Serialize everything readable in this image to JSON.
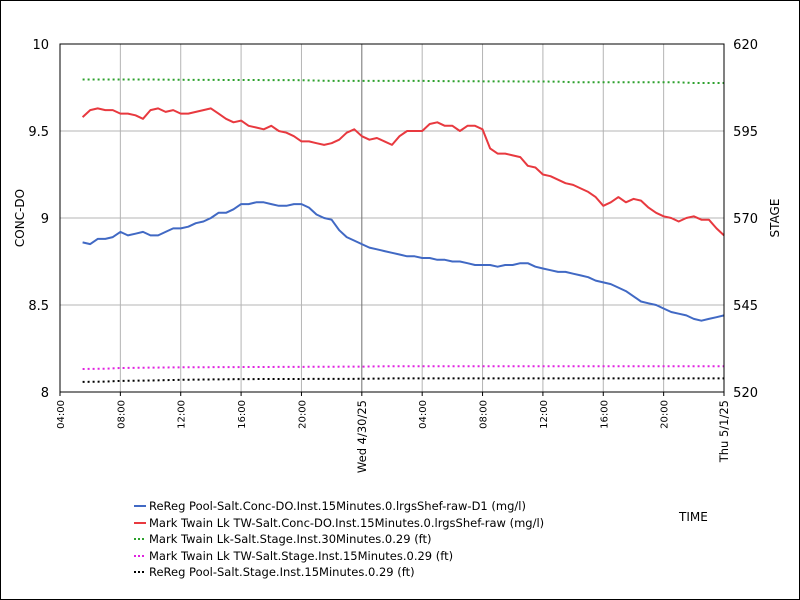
{
  "chart_data": {
    "type": "line",
    "xlabel": "TIME",
    "ylabel": "CONC-DO",
    "y2label": "STAGE",
    "x_range": [
      "2025-04-29 04:00",
      "2025-05-01 00:00"
    ],
    "ylim": [
      8,
      10
    ],
    "y2lim": [
      520,
      620
    ],
    "yticks": [
      "10",
      "9.5",
      "9",
      "8.5",
      "8"
    ],
    "y2ticks": [
      "620",
      "595",
      "570",
      "545",
      "520"
    ],
    "xticks": [
      {
        "time": "2025-04-29 04:00",
        "label": "04:00"
      },
      {
        "time": "2025-04-29 08:00",
        "label": "08:00"
      },
      {
        "time": "2025-04-29 12:00",
        "label": "12:00"
      },
      {
        "time": "2025-04-29 16:00",
        "label": "16:00"
      },
      {
        "time": "2025-04-29 20:00",
        "label": "20:00"
      },
      {
        "time": "2025-04-30 00:00",
        "label": "Wed 4/30/25"
      },
      {
        "time": "2025-04-30 04:00",
        "label": "04:00"
      },
      {
        "time": "2025-04-30 08:00",
        "label": "08:00"
      },
      {
        "time": "2025-04-30 12:00",
        "label": "12:00"
      },
      {
        "time": "2025-04-30 16:00",
        "label": "16:00"
      },
      {
        "time": "2025-04-30 20:00",
        "label": "20:00"
      },
      {
        "time": "2025-05-01 00:00",
        "label": "Thu 5/1/25"
      }
    ],
    "grid": true,
    "legend_position": "bottom",
    "series": [
      {
        "name": "ReReg Pool-Salt.Conc-DO.Inst.15Minutes.0.lrgsShef-raw-D1 (mg/l)",
        "axis": "left",
        "color": "#4169c4",
        "style": "solid",
        "points": [
          [
            "2025-04-29 05:30",
            8.86
          ],
          [
            "2025-04-29 06:00",
            8.85
          ],
          [
            "2025-04-29 06:30",
            8.88
          ],
          [
            "2025-04-29 07:00",
            8.88
          ],
          [
            "2025-04-29 07:30",
            8.89
          ],
          [
            "2025-04-29 08:00",
            8.92
          ],
          [
            "2025-04-29 08:30",
            8.9
          ],
          [
            "2025-04-29 09:00",
            8.91
          ],
          [
            "2025-04-29 09:30",
            8.92
          ],
          [
            "2025-04-29 10:00",
            8.9
          ],
          [
            "2025-04-29 10:30",
            8.9
          ],
          [
            "2025-04-29 11:00",
            8.92
          ],
          [
            "2025-04-29 11:30",
            8.94
          ],
          [
            "2025-04-29 12:00",
            8.94
          ],
          [
            "2025-04-29 12:30",
            8.95
          ],
          [
            "2025-04-29 13:00",
            8.97
          ],
          [
            "2025-04-29 13:30",
            8.98
          ],
          [
            "2025-04-29 14:00",
            9.0
          ],
          [
            "2025-04-29 14:30",
            9.03
          ],
          [
            "2025-04-29 15:00",
            9.03
          ],
          [
            "2025-04-29 15:30",
            9.05
          ],
          [
            "2025-04-29 16:00",
            9.08
          ],
          [
            "2025-04-29 16:30",
            9.08
          ],
          [
            "2025-04-29 17:00",
            9.09
          ],
          [
            "2025-04-29 17:30",
            9.09
          ],
          [
            "2025-04-29 18:00",
            9.08
          ],
          [
            "2025-04-29 18:30",
            9.07
          ],
          [
            "2025-04-29 19:00",
            9.07
          ],
          [
            "2025-04-29 19:30",
            9.08
          ],
          [
            "2025-04-29 20:00",
            9.08
          ],
          [
            "2025-04-29 20:30",
            9.06
          ],
          [
            "2025-04-29 21:00",
            9.02
          ],
          [
            "2025-04-29 21:30",
            9.0
          ],
          [
            "2025-04-29 22:00",
            8.99
          ],
          [
            "2025-04-29 22:30",
            8.93
          ],
          [
            "2025-04-29 23:00",
            8.89
          ],
          [
            "2025-04-29 23:30",
            8.87
          ],
          [
            "2025-04-30 00:00",
            8.85
          ],
          [
            "2025-04-30 00:30",
            8.83
          ],
          [
            "2025-04-30 01:00",
            8.82
          ],
          [
            "2025-04-30 01:30",
            8.81
          ],
          [
            "2025-04-30 02:00",
            8.8
          ],
          [
            "2025-04-30 02:30",
            8.79
          ],
          [
            "2025-04-30 03:00",
            8.78
          ],
          [
            "2025-04-30 03:30",
            8.78
          ],
          [
            "2025-04-30 04:00",
            8.77
          ],
          [
            "2025-04-30 04:30",
            8.77
          ],
          [
            "2025-04-30 05:00",
            8.76
          ],
          [
            "2025-04-30 05:30",
            8.76
          ],
          [
            "2025-04-30 06:00",
            8.75
          ],
          [
            "2025-04-30 06:30",
            8.75
          ],
          [
            "2025-04-30 07:00",
            8.74
          ],
          [
            "2025-04-30 07:30",
            8.73
          ],
          [
            "2025-04-30 08:00",
            8.73
          ],
          [
            "2025-04-30 08:30",
            8.73
          ],
          [
            "2025-04-30 09:00",
            8.72
          ],
          [
            "2025-04-30 09:30",
            8.73
          ],
          [
            "2025-04-30 10:00",
            8.73
          ],
          [
            "2025-04-30 10:30",
            8.74
          ],
          [
            "2025-04-30 11:00",
            8.74
          ],
          [
            "2025-04-30 11:30",
            8.72
          ],
          [
            "2025-04-30 12:00",
            8.71
          ],
          [
            "2025-04-30 12:30",
            8.7
          ],
          [
            "2025-04-30 13:00",
            8.69
          ],
          [
            "2025-04-30 13:30",
            8.69
          ],
          [
            "2025-04-30 14:00",
            8.68
          ],
          [
            "2025-04-30 14:30",
            8.67
          ],
          [
            "2025-04-30 15:00",
            8.66
          ],
          [
            "2025-04-30 15:30",
            8.64
          ],
          [
            "2025-04-30 16:00",
            8.63
          ],
          [
            "2025-04-30 16:30",
            8.62
          ],
          [
            "2025-04-30 17:00",
            8.6
          ],
          [
            "2025-04-30 17:30",
            8.58
          ],
          [
            "2025-04-30 18:00",
            8.55
          ],
          [
            "2025-04-30 18:30",
            8.52
          ],
          [
            "2025-04-30 19:00",
            8.51
          ],
          [
            "2025-04-30 19:30",
            8.5
          ],
          [
            "2025-04-30 20:00",
            8.48
          ],
          [
            "2025-04-30 20:30",
            8.46
          ],
          [
            "2025-04-30 21:00",
            8.45
          ],
          [
            "2025-04-30 21:30",
            8.44
          ],
          [
            "2025-04-30 22:00",
            8.42
          ],
          [
            "2025-04-30 22:30",
            8.41
          ],
          [
            "2025-04-30 23:00",
            8.42
          ],
          [
            "2025-04-30 23:30",
            8.43
          ],
          [
            "2025-05-01 00:00",
            8.44
          ]
        ]
      },
      {
        "name": "Mark Twain Lk TW-Salt.Conc-DO.Inst.15Minutes.0.lrgsShef-raw (mg/l)",
        "axis": "left",
        "color": "#e8393f",
        "style": "solid",
        "points": [
          [
            "2025-04-29 05:30",
            9.58
          ],
          [
            "2025-04-29 06:00",
            9.62
          ],
          [
            "2025-04-29 06:30",
            9.63
          ],
          [
            "2025-04-29 07:00",
            9.62
          ],
          [
            "2025-04-29 07:30",
            9.62
          ],
          [
            "2025-04-29 08:00",
            9.6
          ],
          [
            "2025-04-29 08:30",
            9.6
          ],
          [
            "2025-04-29 09:00",
            9.59
          ],
          [
            "2025-04-29 09:30",
            9.57
          ],
          [
            "2025-04-29 10:00",
            9.62
          ],
          [
            "2025-04-29 10:30",
            9.63
          ],
          [
            "2025-04-29 11:00",
            9.61
          ],
          [
            "2025-04-29 11:30",
            9.62
          ],
          [
            "2025-04-29 12:00",
            9.6
          ],
          [
            "2025-04-29 12:30",
            9.6
          ],
          [
            "2025-04-29 13:00",
            9.61
          ],
          [
            "2025-04-29 13:30",
            9.62
          ],
          [
            "2025-04-29 14:00",
            9.63
          ],
          [
            "2025-04-29 14:30",
            9.6
          ],
          [
            "2025-04-29 15:00",
            9.57
          ],
          [
            "2025-04-29 15:30",
            9.55
          ],
          [
            "2025-04-29 16:00",
            9.56
          ],
          [
            "2025-04-29 16:30",
            9.53
          ],
          [
            "2025-04-29 17:00",
            9.52
          ],
          [
            "2025-04-29 17:30",
            9.51
          ],
          [
            "2025-04-29 18:00",
            9.53
          ],
          [
            "2025-04-29 18:30",
            9.5
          ],
          [
            "2025-04-29 19:00",
            9.49
          ],
          [
            "2025-04-29 19:30",
            9.47
          ],
          [
            "2025-04-29 20:00",
            9.44
          ],
          [
            "2025-04-29 20:30",
            9.44
          ],
          [
            "2025-04-29 21:00",
            9.43
          ],
          [
            "2025-04-29 21:30",
            9.42
          ],
          [
            "2025-04-29 22:00",
            9.43
          ],
          [
            "2025-04-29 22:30",
            9.45
          ],
          [
            "2025-04-29 23:00",
            9.49
          ],
          [
            "2025-04-29 23:30",
            9.51
          ],
          [
            "2025-04-30 00:00",
            9.47
          ],
          [
            "2025-04-30 00:30",
            9.45
          ],
          [
            "2025-04-30 01:00",
            9.46
          ],
          [
            "2025-04-30 01:30",
            9.44
          ],
          [
            "2025-04-30 02:00",
            9.42
          ],
          [
            "2025-04-30 02:30",
            9.47
          ],
          [
            "2025-04-30 03:00",
            9.5
          ],
          [
            "2025-04-30 03:30",
            9.5
          ],
          [
            "2025-04-30 04:00",
            9.5
          ],
          [
            "2025-04-30 04:30",
            9.54
          ],
          [
            "2025-04-30 05:00",
            9.55
          ],
          [
            "2025-04-30 05:30",
            9.53
          ],
          [
            "2025-04-30 06:00",
            9.53
          ],
          [
            "2025-04-30 06:30",
            9.5
          ],
          [
            "2025-04-30 07:00",
            9.53
          ],
          [
            "2025-04-30 07:30",
            9.53
          ],
          [
            "2025-04-30 08:00",
            9.51
          ],
          [
            "2025-04-30 08:30",
            9.4
          ],
          [
            "2025-04-30 09:00",
            9.37
          ],
          [
            "2025-04-30 09:30",
            9.37
          ],
          [
            "2025-04-30 10:00",
            9.36
          ],
          [
            "2025-04-30 10:30",
            9.35
          ],
          [
            "2025-04-30 11:00",
            9.3
          ],
          [
            "2025-04-30 11:30",
            9.29
          ],
          [
            "2025-04-30 12:00",
            9.25
          ],
          [
            "2025-04-30 12:30",
            9.24
          ],
          [
            "2025-04-30 13:00",
            9.22
          ],
          [
            "2025-04-30 13:30",
            9.2
          ],
          [
            "2025-04-30 14:00",
            9.19
          ],
          [
            "2025-04-30 14:30",
            9.17
          ],
          [
            "2025-04-30 15:00",
            9.15
          ],
          [
            "2025-04-30 15:30",
            9.12
          ],
          [
            "2025-04-30 16:00",
            9.07
          ],
          [
            "2025-04-30 16:30",
            9.09
          ],
          [
            "2025-04-30 17:00",
            9.12
          ],
          [
            "2025-04-30 17:30",
            9.09
          ],
          [
            "2025-04-30 18:00",
            9.11
          ],
          [
            "2025-04-30 18:30",
            9.1
          ],
          [
            "2025-04-30 19:00",
            9.06
          ],
          [
            "2025-04-30 19:30",
            9.03
          ],
          [
            "2025-04-30 20:00",
            9.01
          ],
          [
            "2025-04-30 20:30",
            9.0
          ],
          [
            "2025-04-30 21:00",
            8.98
          ],
          [
            "2025-04-30 21:30",
            9.0
          ],
          [
            "2025-04-30 22:00",
            9.01
          ],
          [
            "2025-04-30 22:30",
            8.99
          ],
          [
            "2025-04-30 23:00",
            8.99
          ],
          [
            "2025-04-30 23:30",
            8.94
          ],
          [
            "2025-05-01 00:00",
            8.9
          ]
        ]
      },
      {
        "name": "Mark Twain Lk-Salt.Stage.Inst.30Minutes.0.29 (ft)",
        "axis": "right",
        "color": "#2ca02c",
        "style": "dotted",
        "points": [
          [
            "2025-04-29 05:30",
            609.8
          ],
          [
            "2025-04-29 10:00",
            609.8
          ],
          [
            "2025-04-29 12:00",
            609.7
          ],
          [
            "2025-04-29 20:00",
            609.6
          ],
          [
            "2025-04-29 22:00",
            609.4
          ],
          [
            "2025-04-30 04:00",
            609.4
          ],
          [
            "2025-04-30 06:00",
            609.3
          ],
          [
            "2025-04-30 13:00",
            609.2
          ],
          [
            "2025-04-30 14:00",
            609.0
          ],
          [
            "2025-04-30 21:00",
            609.0
          ],
          [
            "2025-04-30 22:00",
            608.8
          ],
          [
            "2025-05-01 00:00",
            608.8
          ]
        ]
      },
      {
        "name": "Mark Twain Lk TW-Salt.Stage.Inst.15Minutes.0.29 (ft)",
        "axis": "right",
        "color": "#e022e0",
        "style": "dotted",
        "points": [
          [
            "2025-04-29 05:30",
            526.6
          ],
          [
            "2025-04-29 07:00",
            526.7
          ],
          [
            "2025-04-29 08:00",
            526.9
          ],
          [
            "2025-04-29 12:00",
            527.1
          ],
          [
            "2025-04-30 00:00",
            527.3
          ],
          [
            "2025-04-30 02:00",
            527.4
          ],
          [
            "2025-05-01 00:00",
            527.4
          ]
        ]
      },
      {
        "name": "ReReg Pool-Salt.Stage.Inst.15Minutes.0.29 (ft)",
        "axis": "right",
        "color": "#000000",
        "style": "dotted",
        "points": [
          [
            "2025-04-29 05:30",
            522.9
          ],
          [
            "2025-04-29 07:00",
            523.0
          ],
          [
            "2025-04-29 08:00",
            523.2
          ],
          [
            "2025-04-29 10:00",
            523.3
          ],
          [
            "2025-04-29 12:00",
            523.5
          ],
          [
            "2025-04-29 16:00",
            523.7
          ],
          [
            "2025-04-30 00:00",
            523.8
          ],
          [
            "2025-04-30 02:00",
            523.9
          ],
          [
            "2025-05-01 00:00",
            523.9
          ]
        ]
      }
    ]
  }
}
